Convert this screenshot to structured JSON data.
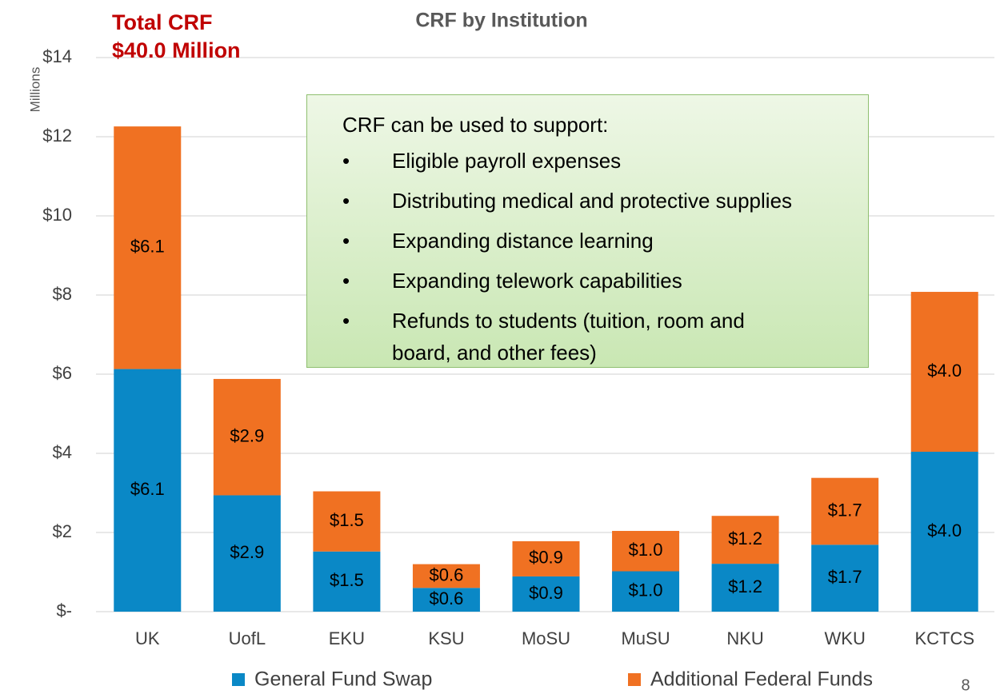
{
  "chart_data": {
    "type": "stacked_bar",
    "title": "CRF by Institution",
    "headline": [
      "Total CRF",
      "$40.0 Million"
    ],
    "y_axis_label": "Millions",
    "categories": [
      "UK",
      "UofL",
      "EKU",
      "KSU",
      "MoSU",
      "MuSU",
      "NKU",
      "WKU",
      "KCTCS"
    ],
    "series": [
      {
        "name": "General Fund Swap",
        "color": "#0a88c6",
        "values": [
          6.13,
          2.94,
          1.52,
          0.6,
          0.89,
          1.02,
          1.21,
          1.69,
          4.04
        ],
        "value_labels": [
          "$6.1",
          "$2.9",
          "$1.5",
          "$0.6",
          "$0.9",
          "$1.0",
          "$1.2",
          "$1.7",
          "$4.0"
        ]
      },
      {
        "name": "Additional Federal Funds",
        "color": "#f07122",
        "values": [
          6.13,
          2.94,
          1.52,
          0.6,
          0.89,
          1.02,
          1.21,
          1.69,
          4.04
        ],
        "value_labels": [
          "$6.1",
          "$2.9",
          "$1.5",
          "$0.6",
          "$0.9",
          "$1.0",
          "$1.2",
          "$1.7",
          "$4.0"
        ]
      }
    ],
    "ylim": [
      0,
      14
    ],
    "yticks": [
      {
        "value": 0,
        "label": "$-"
      },
      {
        "value": 2,
        "label": "$2"
      },
      {
        "value": 4,
        "label": "$4"
      },
      {
        "value": 6,
        "label": "$6"
      },
      {
        "value": 8,
        "label": "$8"
      },
      {
        "value": 10,
        "label": "$10"
      },
      {
        "value": 12,
        "label": "$12"
      },
      {
        "value": 14,
        "label": "$14"
      }
    ],
    "grid": true,
    "legend": "bottom",
    "callout": {
      "heading": "CRF can be used to support:",
      "items": [
        "Eligible payroll expenses",
        "Distributing medical and protective supplies",
        "Expanding distance learning",
        "Expanding telework capabilities",
        "Refunds to students (tuition, room and board, and other fees)"
      ]
    },
    "page_number": "8"
  }
}
